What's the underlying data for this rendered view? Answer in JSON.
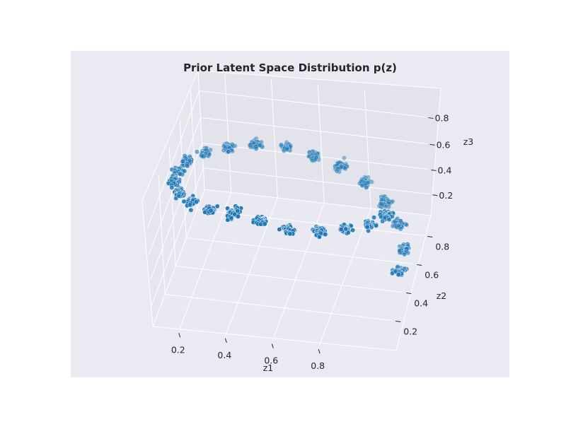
{
  "chart_data": {
    "type": "scatter",
    "title": "Prior Latent Space Distribution p(z)",
    "xlabel": "z1",
    "ylabel": "z2",
    "zlabel": "z3",
    "xlim": [
      0.0,
      1.0
    ],
    "ylim": [
      0.0,
      1.0
    ],
    "zlim": [
      0.0,
      1.0
    ],
    "x_ticks": [
      "0.2",
      "0.4",
      "0.6",
      "0.8"
    ],
    "y_ticks": [
      "0.2",
      "0.4",
      "0.6",
      "0.8"
    ],
    "z_ticks": [
      "0.2",
      "0.4",
      "0.6",
      "0.8"
    ],
    "grid": true,
    "projection": "3d",
    "marker_color": "#1f77b4",
    "points_per_cluster": 50,
    "cluster_spread": 0.012,
    "cluster_centers": [
      {
        "x": 0.98,
        "y": 0.5,
        "z": 0.1
      },
      {
        "x": 0.97,
        "y": 0.62,
        "z": 0.15
      },
      {
        "x": 0.92,
        "y": 0.74,
        "z": 0.21
      },
      {
        "x": 0.84,
        "y": 0.84,
        "z": 0.26
      },
      {
        "x": 0.74,
        "y": 0.92,
        "z": 0.32
      },
      {
        "x": 0.62,
        "y": 0.97,
        "z": 0.37
      },
      {
        "x": 0.5,
        "y": 0.98,
        "z": 0.42
      },
      {
        "x": 0.38,
        "y": 0.97,
        "z": 0.47
      },
      {
        "x": 0.26,
        "y": 0.92,
        "z": 0.53
      },
      {
        "x": 0.16,
        "y": 0.84,
        "z": 0.58
      },
      {
        "x": 0.08,
        "y": 0.74,
        "z": 0.63
      },
      {
        "x": 0.03,
        "y": 0.62,
        "z": 0.68
      },
      {
        "x": 0.02,
        "y": 0.5,
        "z": 0.74
      },
      {
        "x": 0.03,
        "y": 0.38,
        "z": 0.79
      },
      {
        "x": 0.08,
        "y": 0.26,
        "z": 0.84
      },
      {
        "x": 0.16,
        "y": 0.16,
        "z": 0.9
      },
      {
        "x": 0.26,
        "y": 0.08,
        "z": 0.95
      },
      {
        "x": 0.38,
        "y": 0.03,
        "z": 1.0
      },
      {
        "x": 0.5,
        "y": 0.02,
        "z": 0.97
      },
      {
        "x": 0.62,
        "y": 0.03,
        "z": 0.92
      },
      {
        "x": 0.74,
        "y": 0.08,
        "z": 0.87
      },
      {
        "x": 0.84,
        "y": 0.16,
        "z": 0.82
      },
      {
        "x": 0.92,
        "y": 0.26,
        "z": 0.76
      },
      {
        "x": 0.97,
        "y": 0.38,
        "z": 0.71
      }
    ]
  }
}
